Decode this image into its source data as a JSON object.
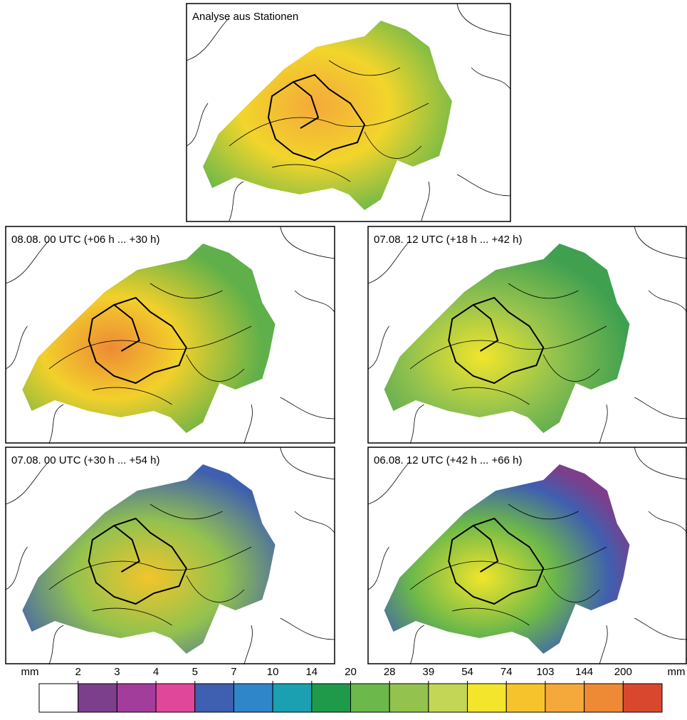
{
  "panels": [
    {
      "title": "Analyse aus Stationen"
    },
    {
      "title": "08.08. 00 UTC (+06 h ... +30 h)"
    },
    {
      "title": "07.08. 12 UTC (+18 h ... +42 h)"
    },
    {
      "title": "07.08. 00 UTC (+30 h ... +54 h)"
    },
    {
      "title": "06.08. 12 UTC (+42 h ... +66 h)"
    }
  ],
  "colorbar": {
    "unit": "mm",
    "ticks": [
      2,
      3,
      4,
      5,
      7,
      10,
      14,
      20,
      28,
      39,
      54,
      74,
      103,
      144,
      200
    ],
    "colors": [
      "#ffffff",
      "#7b3f8c",
      "#a23d9c",
      "#e0469a",
      "#3f5fb0",
      "#2f86c8",
      "#1aa0b0",
      "#1f9a4a",
      "#6cb84a",
      "#93c24e",
      "#c3d655",
      "#f2e52b",
      "#f7c32c",
      "#f4a93a",
      "#ee8a35",
      "#d9482e"
    ]
  }
}
